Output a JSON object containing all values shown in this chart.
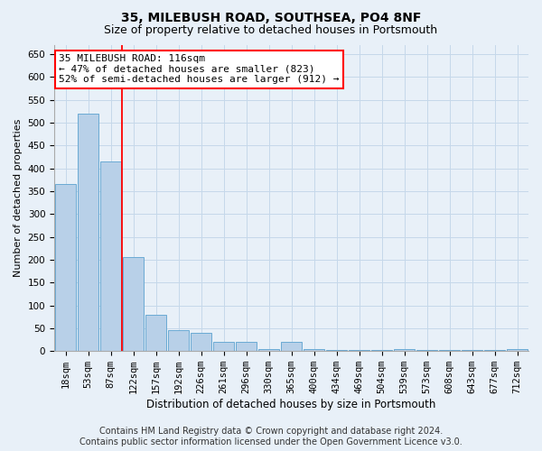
{
  "title1": "35, MILEBUSH ROAD, SOUTHSEA, PO4 8NF",
  "title2": "Size of property relative to detached houses in Portsmouth",
  "xlabel": "Distribution of detached houses by size in Portsmouth",
  "ylabel": "Number of detached properties",
  "categories": [
    "18sqm",
    "53sqm",
    "87sqm",
    "122sqm",
    "157sqm",
    "192sqm",
    "226sqm",
    "261sqm",
    "296sqm",
    "330sqm",
    "365sqm",
    "400sqm",
    "434sqm",
    "469sqm",
    "504sqm",
    "539sqm",
    "573sqm",
    "608sqm",
    "643sqm",
    "677sqm",
    "712sqm"
  ],
  "values": [
    365,
    520,
    415,
    205,
    80,
    45,
    40,
    20,
    20,
    5,
    20,
    5,
    2,
    2,
    2,
    5,
    2,
    2,
    2,
    2,
    5
  ],
  "bar_color": "#b8d0e8",
  "bar_edge_color": "#6aaad4",
  "annotation_text": "35 MILEBUSH ROAD: 116sqm\n← 47% of detached houses are smaller (823)\n52% of semi-detached houses are larger (912) →",
  "annotation_box_color": "white",
  "annotation_box_edge_color": "red",
  "grid_color": "#c5d8ea",
  "background_color": "#e8f0f8",
  "ylim": [
    0,
    670
  ],
  "yticks": [
    0,
    50,
    100,
    150,
    200,
    250,
    300,
    350,
    400,
    450,
    500,
    550,
    600,
    650
  ],
  "footer1": "Contains HM Land Registry data © Crown copyright and database right 2024.",
  "footer2": "Contains public sector information licensed under the Open Government Licence v3.0.",
  "title1_fontsize": 10,
  "title2_fontsize": 9,
  "xlabel_fontsize": 8.5,
  "ylabel_fontsize": 8,
  "tick_fontsize": 7.5,
  "annotation_fontsize": 8,
  "footer_fontsize": 7
}
